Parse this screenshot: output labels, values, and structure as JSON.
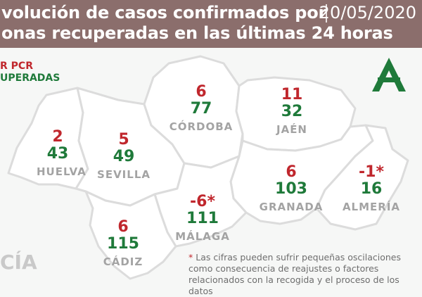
{
  "header": {
    "title_line1": "volución de casos confirmados por",
    "title_line2": "onas recuperadas en las últimas 24 horas",
    "date": "20/05/2020"
  },
  "legend": {
    "pcr_label": "R PCR",
    "recovered_label": "UPERADAS"
  },
  "provinces": {
    "huelva": {
      "name": "HUELVA",
      "pcr": "2",
      "recovered": "43"
    },
    "sevilla": {
      "name": "SEVILLA",
      "pcr": "5",
      "recovered": "49"
    },
    "cordoba": {
      "name": "CÓRDOBA",
      "pcr": "6",
      "recovered": "77"
    },
    "jaen": {
      "name": "JAÉN",
      "pcr": "11",
      "recovered": "32"
    },
    "granada": {
      "name": "GRANADA",
      "pcr": "6",
      "recovered": "103"
    },
    "almeria": {
      "name": "ALMERÍA",
      "pcr": "-1*",
      "recovered": "16"
    },
    "malaga": {
      "name": "MÁLAGA",
      "pcr": "-6*",
      "recovered": "111"
    },
    "cadiz": {
      "name": "CÁDIZ",
      "pcr": "6",
      "recovered": "115"
    }
  },
  "region_word": "CÍA",
  "footnote": {
    "star": "*",
    "text": "Las cifras pueden sufrir pequeñas oscilaciones como consecuencia de reajustes o factores relacionados con la recogida y el proceso de los datos"
  },
  "colors": {
    "header_bg": "#8b6e6c",
    "pcr": "#c0272d",
    "recovered": "#1f7a3a",
    "province_fill": "#ffffff",
    "province_border": "#dcdcdc",
    "logo": "#1f7a3a"
  },
  "icons": {
    "logo": "junta-de-andalucia-logo-icon"
  }
}
